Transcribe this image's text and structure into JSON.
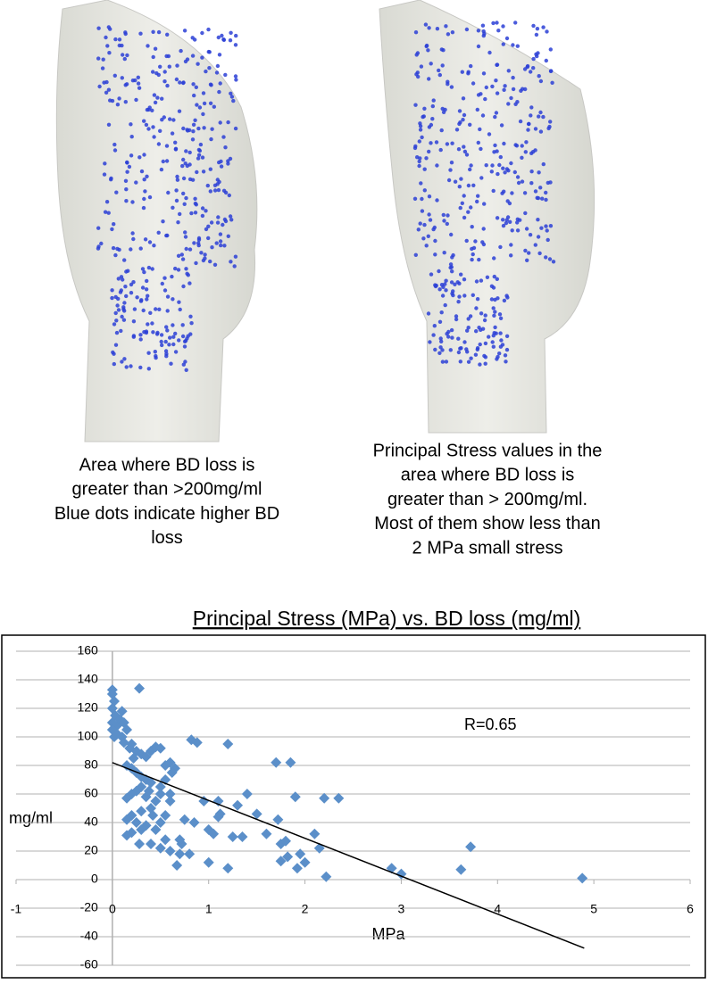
{
  "figure": {
    "captions": [
      [
        "Area where BD loss is",
        "greater than >200mg/ml",
        "Blue dots indicate higher BD",
        "loss"
      ],
      [
        "Principal Stress values in the",
        "area where BD loss is",
        "greater than > 200mg/ml.",
        "Most of them show less than",
        "2 MPa small stress"
      ]
    ]
  },
  "chart_data": {
    "type": "scatter",
    "title": "Principal Stress (MPa) vs. BD loss (mg/ml)",
    "x_label": "MPa",
    "y_label": "mg/ml",
    "annotation": "R=0.65",
    "xlim": [
      -1,
      6
    ],
    "xticks": [
      -1,
      0,
      1,
      2,
      3,
      4,
      5,
      6
    ],
    "ylim": [
      -60,
      160
    ],
    "yticks": [
      -60,
      -40,
      -20,
      0,
      20,
      40,
      60,
      80,
      100,
      120,
      140,
      160
    ],
    "grid": true,
    "series": [
      {
        "color": "#5b8fc9",
        "x": [
          0,
          0,
          0.02,
          0,
          0.03,
          0,
          0.05,
          0,
          0.02,
          0.05,
          0.08,
          0.1,
          0.12,
          0.15,
          0.1,
          0.12,
          0.28,
          0.2,
          0.18,
          0.25,
          0.3,
          0.22,
          0.35,
          0.4,
          0.45,
          0.5,
          0.15,
          0.2,
          0.25,
          0.3,
          0.35,
          0.4,
          0.3,
          0.25,
          0.2,
          0.15,
          0.35,
          0.45,
          0.5,
          0.4,
          0.3,
          0.2,
          0.15,
          0.25,
          0.35,
          0.45,
          0.5,
          0.55,
          0.3,
          0.2,
          0.15,
          0.28,
          0.4,
          0.5,
          0.55,
          0.6,
          0.65,
          0.62,
          0.55,
          0.5,
          0.6,
          0.6,
          0.55,
          0.6,
          0.67,
          0.7,
          0.72,
          0.75,
          0.8,
          0.85,
          0.82,
          0.88,
          0.95,
          1.0,
          1.05,
          1.0,
          1.1,
          1.12,
          1.2,
          1.2,
          1.25,
          1.3,
          1.35,
          1.4,
          1.5,
          1.6,
          1.7,
          1.72,
          1.75,
          1.75,
          1.8,
          1.82,
          1.85,
          1.9,
          1.92,
          1.95,
          2.0,
          2.1,
          2.15,
          2.2,
          2.22,
          2.35,
          2.9,
          3.0,
          3.62,
          3.72,
          4.88,
          1.1,
          0.7,
          0.38,
          0.42
        ],
        "values": [
          133,
          130,
          125,
          120,
          115,
          110,
          108,
          105,
          100,
          102,
          112,
          118,
          110,
          105,
          100,
          96,
          134,
          95,
          92,
          90,
          88,
          85,
          86,
          90,
          93,
          92,
          80,
          78,
          75,
          72,
          70,
          68,
          65,
          62,
          60,
          57,
          58,
          55,
          60,
          50,
          48,
          45,
          42,
          40,
          38,
          35,
          40,
          45,
          35,
          33,
          31,
          25,
          25,
          22,
          80,
          82,
          78,
          75,
          70,
          65,
          60,
          55,
          28,
          20,
          10,
          18,
          25,
          42,
          18,
          40,
          98,
          96,
          55,
          35,
          32,
          12,
          55,
          46,
          8,
          95,
          30,
          52,
          30,
          60,
          46,
          32,
          82,
          42,
          25,
          13,
          27,
          16,
          82,
          58,
          8,
          18,
          12,
          32,
          22,
          57,
          2,
          57,
          8,
          4,
          7,
          23,
          1,
          44,
          28,
          62,
          45
        ]
      }
    ],
    "trendline": {
      "color": "#000000",
      "x": [
        0,
        4.9
      ],
      "values": [
        82,
        -48
      ]
    }
  }
}
